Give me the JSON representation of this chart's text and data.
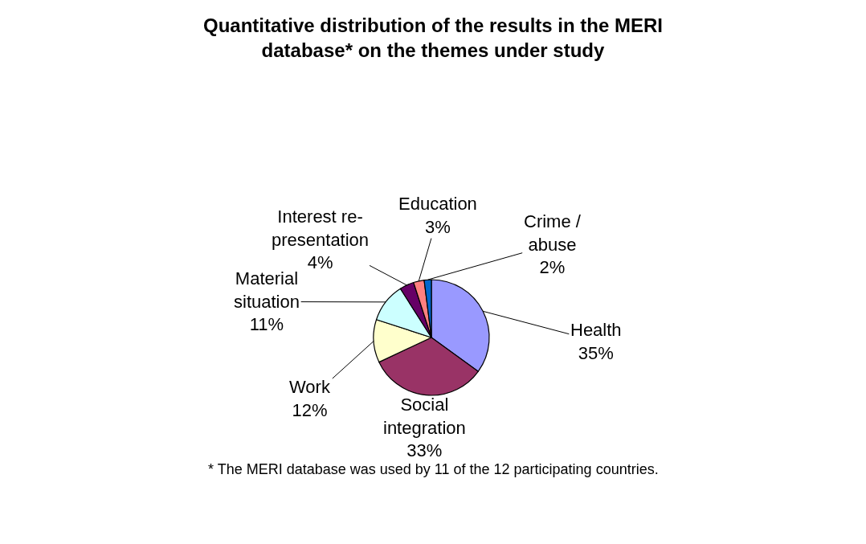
{
  "chart_data": {
    "type": "pie",
    "title": "Quantitative distribution of the results in the MERI\ndatabase* on the themes under study",
    "categories": [
      "Health",
      "Social\nintegration",
      "Work",
      "Material\nsituation",
      "Interest re-\npresentation",
      "Education",
      "Crime /\nabuse"
    ],
    "values": [
      35,
      33,
      12,
      11,
      4,
      3,
      2
    ],
    "value_labels": [
      "35%",
      "33%",
      "12%",
      "11%",
      "4%",
      "3%",
      "2%"
    ],
    "colors": [
      "#9999ff",
      "#993366",
      "#ffffcc",
      "#ccffff",
      "#660066",
      "#ff8080",
      "#0066cc"
    ],
    "legend": false,
    "annotations": [
      "* The MERI database was used by 11 of the 12 participating countries."
    ]
  }
}
